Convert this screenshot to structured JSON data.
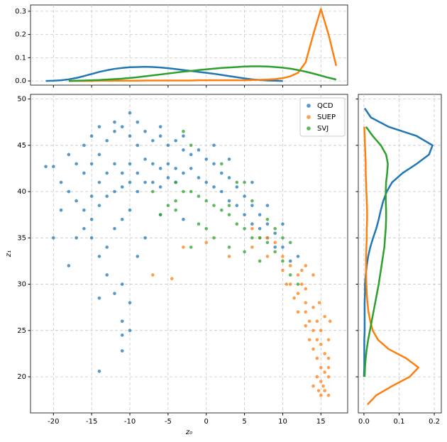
{
  "chart_data": [
    {
      "type": "scatter",
      "xlabel": "z₀",
      "ylabel": "z₁",
      "xlim": [
        -23,
        18.5
      ],
      "ylim": [
        16.1,
        50.5
      ],
      "xticks": [
        -20,
        -15,
        -10,
        -5,
        0,
        5,
        10,
        15
      ],
      "yticks": [
        20,
        25,
        30,
        35,
        40,
        45,
        50
      ],
      "grid": true,
      "legend": "upper right",
      "series": [
        {
          "name": "QCD",
          "color": "#1f77b4",
          "x": [
            -16,
            -15,
            -14,
            -13,
            -12,
            -11,
            -10,
            -9,
            -8,
            -7,
            -6,
            -5,
            -4,
            -3,
            -2,
            -1,
            0,
            1,
            2,
            3,
            4,
            5,
            6,
            7,
            8,
            9,
            10,
            11,
            -16,
            -15,
            -14,
            -13,
            -12,
            -11,
            -10,
            -9,
            -8,
            -7,
            -6,
            -5,
            -4,
            -3,
            -2,
            -1,
            0,
            1,
            2,
            3,
            4,
            5,
            6,
            7,
            8,
            9,
            -18,
            -17,
            -19,
            -18,
            -17,
            -16,
            -15,
            -14,
            -13,
            -12,
            -11,
            -10,
            -9,
            -8,
            -7,
            -6,
            -5,
            -4,
            -12,
            -10,
            -9,
            -14,
            -6,
            -3,
            1,
            3,
            6,
            8,
            10,
            12,
            -16,
            -15,
            -14,
            -13,
            -12,
            -11,
            -10,
            -13,
            -12,
            -11,
            -14,
            -10,
            -11,
            -10,
            -11,
            -11,
            -14,
            -20,
            -21,
            -20,
            -18,
            -17,
            -19,
            -15,
            -9,
            -8,
            -3,
            -6
          ],
          "values": [
            45,
            46,
            44,
            45.5,
            46.5,
            47,
            46,
            45,
            46.5,
            45.5,
            46,
            45,
            45.5,
            44.5,
            44,
            44.5,
            43.5,
            43,
            42,
            41.5,
            40.5,
            39.5,
            38.5,
            37.5,
            36.5,
            35.5,
            34,
            32.5,
            42,
            43,
            41,
            42,
            43,
            42,
            43,
            42,
            43.5,
            43,
            42.5,
            43,
            42.5,
            42,
            42.5,
            41.5,
            41,
            40.5,
            40,
            39,
            38.5,
            37.5,
            36.5,
            36,
            35,
            34,
            44,
            43,
            41,
            40,
            39,
            38,
            39.5,
            38.5,
            39.5,
            40,
            40.5,
            41,
            40,
            41,
            41,
            40.5,
            41.5,
            41,
            47.5,
            48.5,
            47.5,
            47,
            47,
            46,
            45,
            43.5,
            41,
            38.5,
            36.5,
            33,
            36,
            35,
            33,
            34,
            36,
            37,
            38,
            31,
            29,
            30,
            28.5,
            28,
            26,
            25,
            24.5,
            22.8,
            20.6,
            42.7,
            42.7,
            35,
            32,
            35,
            38,
            37,
            33,
            35,
            37,
            37.5
          ]
        },
        {
          "name": "SUEP",
          "color": "#ff7f0e",
          "x": [
            6,
            7,
            8,
            9,
            10,
            10,
            11,
            11,
            12,
            12,
            12.5,
            13,
            13,
            13,
            13.5,
            14,
            14,
            14,
            14.5,
            14.5,
            14.5,
            15,
            15,
            15,
            15,
            15.5,
            15.5,
            15.5,
            16,
            16,
            16,
            16,
            14.5,
            14,
            15,
            13.5,
            13,
            12,
            11.5,
            10.5,
            16.2,
            14,
            13,
            16,
            15.5,
            -7,
            -4.5,
            -3,
            0,
            3,
            6,
            8,
            12.5,
            14.8,
            15.3,
            14.7
          ],
          "values": [
            36,
            35,
            35,
            34.5,
            33,
            31.5,
            32,
            30,
            31,
            29,
            30,
            28,
            29.5,
            27,
            26,
            27.5,
            25,
            23,
            26,
            24,
            22,
            25,
            23.5,
            21,
            19.5,
            22.5,
            20.5,
            18.5,
            24,
            22,
            20,
            18,
            20,
            19,
            18,
            24,
            25.5,
            27,
            28.5,
            30,
            26,
            31,
            32,
            21,
            26.5,
            31,
            30.6,
            34,
            34.5,
            33,
            34,
            33,
            31.5,
            28,
            19,
            18.5
          ]
        },
        {
          "name": "SVJ",
          "color": "#2ca02c",
          "x": [
            -6,
            -5,
            -4,
            -3,
            -2,
            -1,
            0,
            1,
            2,
            3,
            4,
            5,
            6,
            7,
            8,
            9,
            10,
            11,
            12,
            4,
            6,
            8,
            10,
            3,
            -4,
            -2,
            1,
            3,
            0,
            -1,
            5,
            7,
            -7,
            -4,
            -3,
            -2,
            2,
            5,
            9,
            11
          ],
          "values": [
            37.5,
            38.5,
            39,
            40,
            40,
            39.5,
            39,
            38.5,
            38,
            37.5,
            36.5,
            36,
            35,
            35,
            34.5,
            33.5,
            32.5,
            31,
            30,
            41,
            39,
            37,
            35,
            38.5,
            38,
            34,
            35,
            34,
            36,
            36.5,
            33.5,
            32.5,
            40,
            41,
            46.5,
            45,
            43,
            41,
            36,
            34.5
          ]
        }
      ]
    },
    {
      "type": "line",
      "xlim": [
        -23,
        18.5
      ],
      "ylim": [
        -0.018,
        0.327
      ],
      "yticks": [
        {
          "value": 0,
          "label": "0.0"
        },
        {
          "value": 0.1,
          "label": "0.1"
        },
        {
          "value": 0.2,
          "label": "0.2"
        },
        {
          "value": 0.3,
          "label": "0.3"
        }
      ],
      "grid": true,
      "x": [
        -21,
        -20,
        -19,
        -18,
        -17,
        -16,
        -15,
        -14,
        -13,
        -12,
        -11,
        -10,
        -9,
        -8,
        -7,
        -6,
        -5,
        -4,
        -3,
        -2,
        -1,
        0,
        1,
        2,
        3,
        4,
        5,
        6,
        7,
        8,
        9,
        10,
        11,
        12,
        13,
        14,
        15,
        16,
        17
      ],
      "series": [
        {
          "color": "#1f77b4",
          "values": [
            0,
            0.001,
            0.003,
            0.007,
            0.013,
            0.021,
            0.03,
            0.039,
            0.046,
            0.052,
            0.056,
            0.059,
            0.06,
            0.061,
            0.06,
            0.058,
            0.055,
            0.051,
            0.047,
            0.043,
            0.039,
            0.035,
            0.031,
            0.026,
            0.021,
            0.016,
            0.011,
            0.007,
            0.004,
            0.002,
            0.001,
            0,
            null,
            null,
            null,
            null,
            null,
            null,
            null
          ]
        },
        {
          "color": "#ff7f0e",
          "values": [
            null,
            null,
            null,
            0,
            0,
            0,
            0,
            0.001,
            0.001,
            0.001,
            0.001,
            0.001,
            0.001,
            0.002,
            0.002,
            0.002,
            0.002,
            0.002,
            0.002,
            0.002,
            0.003,
            0.003,
            0.003,
            0.003,
            0.003,
            0.003,
            0.003,
            0.004,
            0.005,
            0.006,
            0.008,
            0.012,
            0.02,
            0.035,
            0.08,
            0.2,
            0.31,
            0.2,
            0.065
          ]
        },
        {
          "color": "#2ca02c",
          "values": [
            null,
            null,
            null,
            0,
            0.001,
            0.002,
            0.003,
            0.004,
            0.006,
            0.008,
            0.01,
            0.013,
            0.016,
            0.02,
            0.024,
            0.028,
            0.032,
            0.036,
            0.04,
            0.043,
            0.047,
            0.05,
            0.053,
            0.056,
            0.058,
            0.06,
            0.062,
            0.063,
            0.063,
            0.062,
            0.06,
            0.057,
            0.053,
            0.047,
            0.04,
            0.032,
            0.023,
            0.014,
            0.006
          ]
        }
      ]
    },
    {
      "type": "line",
      "orientation": "horizontal",
      "xlim": [
        -0.016,
        0.22
      ],
      "ylim": [
        16.1,
        50.5
      ],
      "xticks": [
        {
          "value": 0,
          "label": "0.0"
        },
        {
          "value": 0.1,
          "label": "0.1"
        },
        {
          "value": 0.2,
          "label": "0.2"
        }
      ],
      "grid": true,
      "y": [
        17,
        18,
        19,
        20,
        21,
        22,
        23,
        24,
        25,
        26,
        27,
        28,
        29,
        30,
        31,
        32,
        33,
        34,
        35,
        36,
        37,
        38,
        39,
        40,
        41,
        42,
        43,
        44,
        45,
        46,
        47,
        48,
        49
      ],
      "series": [
        {
          "color": "#1f77b4",
          "values": [
            null,
            null,
            null,
            0,
            0.001,
            0.001,
            0.001,
            0.001,
            0.002,
            0.002,
            0.002,
            0.002,
            0.003,
            0.003,
            0.005,
            0.008,
            0.012,
            0.018,
            0.026,
            0.035,
            0.042,
            0.048,
            0.055,
            0.065,
            0.08,
            0.11,
            0.15,
            0.185,
            0.195,
            0.15,
            0.07,
            0.02,
            0.002
          ]
        },
        {
          "color": "#ff7f0e",
          "values": [
            0.01,
            0.035,
            0.08,
            0.13,
            0.155,
            0.12,
            0.07,
            0.04,
            0.025,
            0.018,
            0.013,
            0.01,
            0.008,
            0.007,
            0.006,
            0.006,
            0.006,
            0.007,
            0.008,
            0.008,
            0.009,
            0.009,
            0.008,
            0.007,
            0.006,
            0.005,
            0.005,
            0.004,
            0.003,
            0.002,
            0.001,
            null,
            null
          ]
        },
        {
          "color": "#2ca02c",
          "values": [
            null,
            null,
            null,
            0.002,
            0.003,
            0.005,
            0.008,
            0.012,
            0.017,
            0.022,
            0.027,
            0.032,
            0.037,
            0.042,
            0.046,
            0.05,
            0.054,
            0.058,
            0.06,
            0.062,
            0.063,
            0.063,
            0.062,
            0.062,
            0.063,
            0.066,
            0.068,
            0.063,
            0.048,
            0.025,
            0.006,
            null,
            null
          ]
        }
      ]
    }
  ]
}
